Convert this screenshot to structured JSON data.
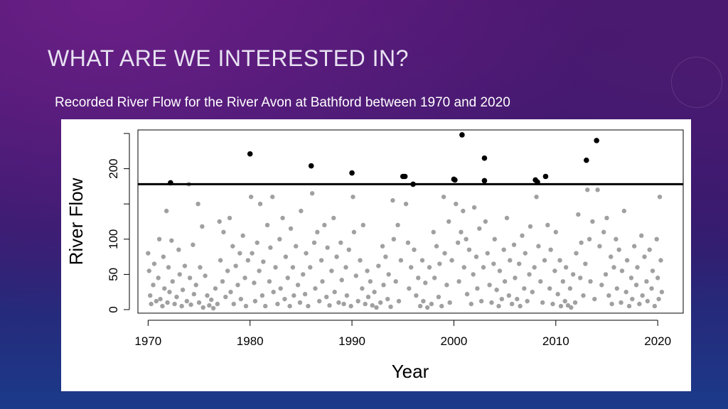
{
  "slide": {
    "title": "WHAT ARE WE INTERESTED IN?",
    "subtitle": "Recorded River Flow for the River Avon at Bathford between 1970 and 2020"
  },
  "colors": {
    "background_top": "#4b1670",
    "background_bottom": "#1b3a8a",
    "points_normal": "#a0a0a0",
    "points_extreme": "#000000",
    "threshold_line": "#000000"
  },
  "chart_data": {
    "type": "scatter",
    "xlabel": "Year",
    "ylabel": "River Flow",
    "xlim": [
      1969.0,
      2022.5
    ],
    "ylim": [
      -5,
      255
    ],
    "x_ticks": [
      1970,
      1980,
      1990,
      2000,
      2010,
      2020
    ],
    "y_ticks": [
      0,
      50,
      100,
      200
    ],
    "x_tick_labels": [
      "1970",
      "1980",
      "1990",
      "2000",
      "2010",
      "2020"
    ],
    "y_tick_labels": [
      "0",
      "50",
      "100",
      "200"
    ],
    "grid": false,
    "threshold": 178,
    "series": [
      {
        "role": "exceedances",
        "color": "#000000",
        "points": [
          [
            1972.2,
            180
          ],
          [
            1980.0,
            221
          ],
          [
            1986.0,
            204
          ],
          [
            1990.0,
            194
          ],
          [
            1995.0,
            189
          ],
          [
            1995.2,
            189
          ],
          [
            1996.0,
            178
          ],
          [
            2000.0,
            185
          ],
          [
            2000.1,
            184
          ],
          [
            2000.8,
            248
          ],
          [
            2003.0,
            215
          ],
          [
            2003.0,
            183
          ],
          [
            2008.0,
            184
          ],
          [
            2008.2,
            181
          ],
          [
            2009.0,
            189
          ],
          [
            2013.0,
            212
          ],
          [
            2014.0,
            240
          ]
        ]
      },
      {
        "role": "observations",
        "color": "#a0a0a0",
        "points": [
          [
            1970.0,
            80
          ],
          [
            1970.1,
            55
          ],
          [
            1970.2,
            20
          ],
          [
            1970.3,
            8
          ],
          [
            1970.5,
            35
          ],
          [
            1970.6,
            65
          ],
          [
            1970.8,
            12
          ],
          [
            1971.0,
            45
          ],
          [
            1971.1,
            100
          ],
          [
            1971.2,
            15
          ],
          [
            1971.4,
            5
          ],
          [
            1971.5,
            75
          ],
          [
            1971.6,
            30
          ],
          [
            1971.8,
            140
          ],
          [
            1971.9,
            10
          ],
          [
            1972.0,
            60
          ],
          [
            1972.1,
            25
          ],
          [
            1972.3,
            98
          ],
          [
            1972.4,
            40
          ],
          [
            1972.6,
            8
          ],
          [
            1972.8,
            18
          ],
          [
            1973.0,
            85
          ],
          [
            1973.1,
            50
          ],
          [
            1973.3,
            5
          ],
          [
            1973.4,
            28
          ],
          [
            1973.6,
            62
          ],
          [
            1973.8,
            12
          ],
          [
            1974.0,
            178
          ],
          [
            1974.1,
            45
          ],
          [
            1974.2,
            7
          ],
          [
            1974.4,
            92
          ],
          [
            1974.5,
            22
          ],
          [
            1974.7,
            35
          ],
          [
            1974.9,
            150
          ],
          [
            1975.0,
            10
          ],
          [
            1975.1,
            60
          ],
          [
            1975.3,
            118
          ],
          [
            1975.4,
            3
          ],
          [
            1975.6,
            48
          ],
          [
            1975.8,
            20
          ],
          [
            1976.0,
            6
          ],
          [
            1976.2,
            14
          ],
          [
            1976.4,
            2
          ],
          [
            1976.6,
            30
          ],
          [
            1976.8,
            8
          ],
          [
            1977.0,
            125
          ],
          [
            1977.1,
            70
          ],
          [
            1977.3,
            40
          ],
          [
            1977.4,
            110
          ],
          [
            1977.6,
            18
          ],
          [
            1977.8,
            55
          ],
          [
            1978.0,
            130
          ],
          [
            1978.1,
            25
          ],
          [
            1978.3,
            90
          ],
          [
            1978.4,
            8
          ],
          [
            1978.6,
            62
          ],
          [
            1978.8,
            35
          ],
          [
            1979.0,
            80
          ],
          [
            1979.1,
            15
          ],
          [
            1979.3,
            105
          ],
          [
            1979.5,
            45
          ],
          [
            1979.6,
            5
          ],
          [
            1979.8,
            70
          ],
          [
            1980.1,
            160
          ],
          [
            1980.2,
            80
          ],
          [
            1980.4,
            38
          ],
          [
            1980.5,
            12
          ],
          [
            1980.7,
            95
          ],
          [
            1980.9,
            55
          ],
          [
            1981.0,
            150
          ],
          [
            1981.2,
            20
          ],
          [
            1981.3,
            68
          ],
          [
            1981.5,
            5
          ],
          [
            1981.7,
            120
          ],
          [
            1981.9,
            40
          ],
          [
            1982.0,
            88
          ],
          [
            1982.2,
            160
          ],
          [
            1982.3,
            25
          ],
          [
            1982.5,
            60
          ],
          [
            1982.7,
            8
          ],
          [
            1982.9,
            100
          ],
          [
            1983.0,
            30
          ],
          [
            1983.2,
            130
          ],
          [
            1983.4,
            15
          ],
          [
            1983.5,
            75
          ],
          [
            1983.7,
            45
          ],
          [
            1983.9,
            5
          ],
          [
            1984.0,
            115
          ],
          [
            1984.2,
            60
          ],
          [
            1984.3,
            20
          ],
          [
            1984.5,
            90
          ],
          [
            1984.7,
            35
          ],
          [
            1984.9,
            10
          ],
          [
            1985.0,
            140
          ],
          [
            1985.2,
            50
          ],
          [
            1985.4,
            22
          ],
          [
            1985.5,
            80
          ],
          [
            1985.7,
            5
          ],
          [
            1985.9,
            60
          ],
          [
            1986.1,
            165
          ],
          [
            1986.3,
            95
          ],
          [
            1986.4,
            30
          ],
          [
            1986.6,
            110
          ],
          [
            1986.8,
            12
          ],
          [
            1987.0,
            70
          ],
          [
            1987.1,
            40
          ],
          [
            1987.3,
            120
          ],
          [
            1987.5,
            18
          ],
          [
            1987.6,
            88
          ],
          [
            1987.8,
            6
          ],
          [
            1988.0,
            55
          ],
          [
            1988.2,
            130
          ],
          [
            1988.3,
            25
          ],
          [
            1988.5,
            75
          ],
          [
            1988.7,
            10
          ],
          [
            1988.9,
            95
          ],
          [
            1989.0,
            42
          ],
          [
            1989.2,
            8
          ],
          [
            1989.4,
            60
          ],
          [
            1989.5,
            20
          ],
          [
            1989.7,
            85
          ],
          [
            1989.9,
            5
          ],
          [
            1990.1,
            160
          ],
          [
            1990.2,
            110
          ],
          [
            1990.4,
            48
          ],
          [
            1990.6,
            12
          ],
          [
            1990.8,
            70
          ],
          [
            1991.0,
            30
          ],
          [
            1991.1,
            120
          ],
          [
            1991.3,
            8
          ],
          [
            1991.5,
            55
          ],
          [
            1991.6,
            18
          ],
          [
            1991.8,
            40
          ],
          [
            1992.0,
            6
          ],
          [
            1992.2,
            25
          ],
          [
            1992.4,
            3
          ],
          [
            1992.6,
            62
          ],
          [
            1992.8,
            10
          ],
          [
            1993.0,
            90
          ],
          [
            1993.1,
            35
          ],
          [
            1993.3,
            75
          ],
          [
            1993.5,
            15
          ],
          [
            1993.6,
            50
          ],
          [
            1993.8,
            4
          ],
          [
            1994.0,
            155
          ],
          [
            1994.1,
            100
          ],
          [
            1994.3,
            40
          ],
          [
            1994.5,
            120
          ],
          [
            1994.6,
            12
          ],
          [
            1994.8,
            70
          ],
          [
            1995.3,
            150
          ],
          [
            1995.5,
            95
          ],
          [
            1995.6,
            30
          ],
          [
            1995.8,
            60
          ],
          [
            1996.1,
            85
          ],
          [
            1996.3,
            20
          ],
          [
            1996.5,
            45
          ],
          [
            1996.7,
            5
          ],
          [
            1996.9,
            70
          ],
          [
            1997.0,
            12
          ],
          [
            1997.2,
            38
          ],
          [
            1997.4,
            3
          ],
          [
            1997.6,
            60
          ],
          [
            1997.8,
            8
          ],
          [
            1998.0,
            110
          ],
          [
            1998.1,
            45
          ],
          [
            1998.3,
            90
          ],
          [
            1998.5,
            18
          ],
          [
            1998.6,
            65
          ],
          [
            1998.8,
            5
          ],
          [
            1999.0,
            160
          ],
          [
            1999.1,
            80
          ],
          [
            1999.3,
            35
          ],
          [
            1999.5,
            125
          ],
          [
            1999.6,
            10
          ],
          [
            1999.8,
            70
          ],
          [
            2000.2,
            150
          ],
          [
            2000.4,
            95
          ],
          [
            2000.5,
            40
          ],
          [
            2000.7,
            110
          ],
          [
            2000.9,
            140
          ],
          [
            2001.0,
            60
          ],
          [
            2001.2,
            100
          ],
          [
            2001.3,
            22
          ],
          [
            2001.5,
            85
          ],
          [
            2001.7,
            8
          ],
          [
            2001.9,
            50
          ],
          [
            2002.0,
            145
          ],
          [
            2002.2,
            75
          ],
          [
            2002.3,
            30
          ],
          [
            2002.5,
            115
          ],
          [
            2002.7,
            12
          ],
          [
            2002.9,
            60
          ],
          [
            2003.1,
            125
          ],
          [
            2003.3,
            80
          ],
          [
            2003.5,
            35
          ],
          [
            2003.7,
            10
          ],
          [
            2003.9,
            65
          ],
          [
            2004.0,
            100
          ],
          [
            2004.2,
            28
          ],
          [
            2004.4,
            5
          ],
          [
            2004.5,
            55
          ],
          [
            2004.7,
            15
          ],
          [
            2004.9,
            85
          ],
          [
            2005.0,
            40
          ],
          [
            2005.2,
            130
          ],
          [
            2005.4,
            20
          ],
          [
            2005.5,
            70
          ],
          [
            2005.7,
            8
          ],
          [
            2005.9,
            92
          ],
          [
            2006.0,
            45
          ],
          [
            2006.2,
            15
          ],
          [
            2006.4,
            65
          ],
          [
            2006.5,
            5
          ],
          [
            2006.7,
            105
          ],
          [
            2006.9,
            30
          ],
          [
            2007.0,
            80
          ],
          [
            2007.2,
            12
          ],
          [
            2007.4,
            50
          ],
          [
            2007.5,
            118
          ],
          [
            2007.7,
            25
          ],
          [
            2007.9,
            60
          ],
          [
            2008.1,
            160
          ],
          [
            2008.3,
            90
          ],
          [
            2008.5,
            40
          ],
          [
            2008.7,
            10
          ],
          [
            2008.9,
            70
          ],
          [
            2009.2,
            120
          ],
          [
            2009.4,
            30
          ],
          [
            2009.5,
            85
          ],
          [
            2009.7,
            8
          ],
          [
            2009.9,
            55
          ],
          [
            2010.0,
            110
          ],
          [
            2010.2,
            22
          ],
          [
            2010.4,
            70
          ],
          [
            2010.5,
            5
          ],
          [
            2010.7,
            40
          ],
          [
            2010.9,
            12
          ],
          [
            2011.0,
            60
          ],
          [
            2011.2,
            6
          ],
          [
            2011.4,
            30
          ],
          [
            2011.5,
            3
          ],
          [
            2011.7,
            50
          ],
          [
            2011.9,
            10
          ],
          [
            2012.0,
            80
          ],
          [
            2012.2,
            135
          ],
          [
            2012.4,
            45
          ],
          [
            2012.5,
            95
          ],
          [
            2012.7,
            20
          ],
          [
            2012.9,
            65
          ],
          [
            2013.1,
            170
          ],
          [
            2013.3,
            100
          ],
          [
            2013.4,
            40
          ],
          [
            2013.6,
            125
          ],
          [
            2013.8,
            15
          ],
          [
            2014.1,
            170
          ],
          [
            2014.3,
            90
          ],
          [
            2014.5,
            35
          ],
          [
            2014.7,
            110
          ],
          [
            2014.9,
            50
          ],
          [
            2015.0,
            130
          ],
          [
            2015.2,
            20
          ],
          [
            2015.4,
            75
          ],
          [
            2015.5,
            8
          ],
          [
            2015.7,
            60
          ],
          [
            2015.9,
            100
          ],
          [
            2016.0,
            30
          ],
          [
            2016.2,
            85
          ],
          [
            2016.4,
            10
          ],
          [
            2016.5,
            55
          ],
          [
            2016.7,
            140
          ],
          [
            2016.9,
            25
          ],
          [
            2017.0,
            70
          ],
          [
            2017.2,
            5
          ],
          [
            2017.4,
            45
          ],
          [
            2017.5,
            15
          ],
          [
            2017.7,
            90
          ],
          [
            2017.9,
            35
          ],
          [
            2018.0,
            60
          ],
          [
            2018.2,
            8
          ],
          [
            2018.4,
            105
          ],
          [
            2018.5,
            20
          ],
          [
            2018.7,
            75
          ],
          [
            2018.9,
            40
          ],
          [
            2019.0,
            12
          ],
          [
            2019.2,
            85
          ],
          [
            2019.4,
            30
          ],
          [
            2019.5,
            55
          ],
          [
            2019.7,
            5
          ],
          [
            2019.9,
            100
          ],
          [
            2020.0,
            45
          ],
          [
            2020.1,
            15
          ],
          [
            2020.2,
            160
          ],
          [
            2020.3,
            70
          ],
          [
            2020.4,
            25
          ]
        ]
      }
    ]
  }
}
